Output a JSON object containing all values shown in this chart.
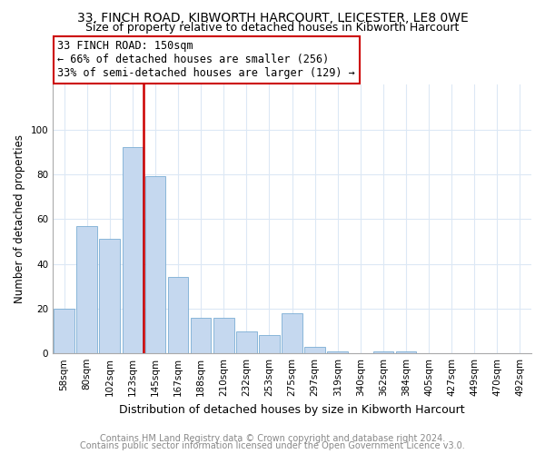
{
  "title": "33, FINCH ROAD, KIBWORTH HARCOURT, LEICESTER, LE8 0WE",
  "subtitle": "Size of property relative to detached houses in Kibworth Harcourt",
  "xlabel": "Distribution of detached houses by size in Kibworth Harcourt",
  "ylabel": "Number of detached properties",
  "footnote1": "Contains HM Land Registry data © Crown copyright and database right 2024.",
  "footnote2": "Contains public sector information licensed under the Open Government Licence v3.0.",
  "bar_labels": [
    "58sqm",
    "80sqm",
    "102sqm",
    "123sqm",
    "145sqm",
    "167sqm",
    "188sqm",
    "210sqm",
    "232sqm",
    "253sqm",
    "275sqm",
    "297sqm",
    "319sqm",
    "340sqm",
    "362sqm",
    "384sqm",
    "405sqm",
    "427sqm",
    "449sqm",
    "470sqm",
    "492sqm"
  ],
  "bar_values": [
    20,
    57,
    51,
    92,
    79,
    34,
    16,
    16,
    10,
    8,
    18,
    3,
    1,
    0,
    1,
    1,
    0,
    0,
    0,
    0,
    0
  ],
  "bar_color": "#c5d8ef",
  "bar_edge_color": "#7badd4",
  "vline_index": 3.5,
  "vline_color": "#cc0000",
  "annotation_text": "33 FINCH ROAD: 150sqm\n← 66% of detached houses are smaller (256)\n33% of semi-detached houses are larger (129) →",
  "annotation_box_color": "#ffffff",
  "annotation_box_edge_color": "#cc0000",
  "ylim": [
    0,
    120
  ],
  "yticks": [
    0,
    20,
    40,
    60,
    80,
    100
  ],
  "background_color": "#ffffff",
  "grid_color": "#dce8f5",
  "title_fontsize": 10,
  "subtitle_fontsize": 9,
  "xlabel_fontsize": 9,
  "ylabel_fontsize": 8.5,
  "tick_fontsize": 7.5,
  "annotation_fontsize": 8.5,
  "footnote_fontsize": 7
}
